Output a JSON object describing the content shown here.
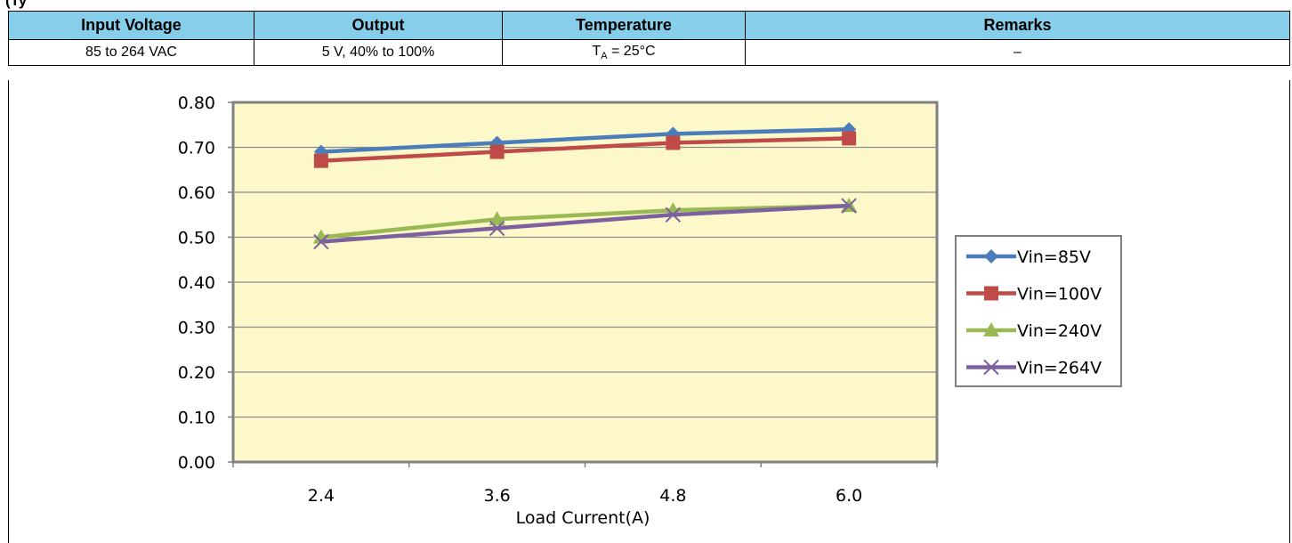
{
  "page_title": "(Ty",
  "conditions": {
    "headers": [
      "Input Voltage",
      "Output",
      "Temperature",
      "Remarks"
    ],
    "values": {
      "input_voltage": "85 to 264 VAC",
      "output": "5 V, 40% to 100%",
      "temperature_sym": "T",
      "temperature_sub": "A",
      "temperature_rest": " = 25°C",
      "remarks": "–"
    }
  },
  "chart_data": {
    "type": "line",
    "title": "",
    "xlabel": "Load Current(A)",
    "ylabel": "",
    "categories": [
      "2.4",
      "3.6",
      "4.8",
      "6.0"
    ],
    "ylim": [
      0,
      0.8
    ],
    "yticks": [
      "0.00",
      "0.10",
      "0.20",
      "0.30",
      "0.40",
      "0.50",
      "0.60",
      "0.70",
      "0.80"
    ],
    "grid": true,
    "legend_position": "right",
    "plot_background": "#fdf8c9",
    "series": [
      {
        "name": "Vin=85V",
        "values": [
          0.69,
          0.71,
          0.73,
          0.74
        ],
        "color": "#4a7ebb",
        "marker": "diamond"
      },
      {
        "name": "Vin=100V",
        "values": [
          0.67,
          0.69,
          0.71,
          0.72
        ],
        "color": "#be4b48",
        "marker": "square"
      },
      {
        "name": "Vin=240V",
        "values": [
          0.5,
          0.54,
          0.56,
          0.57
        ],
        "color": "#98b954",
        "marker": "triangle"
      },
      {
        "name": "Vin=264V",
        "values": [
          0.49,
          0.52,
          0.55,
          0.57
        ],
        "color": "#7d60a0",
        "marker": "x"
      }
    ]
  }
}
